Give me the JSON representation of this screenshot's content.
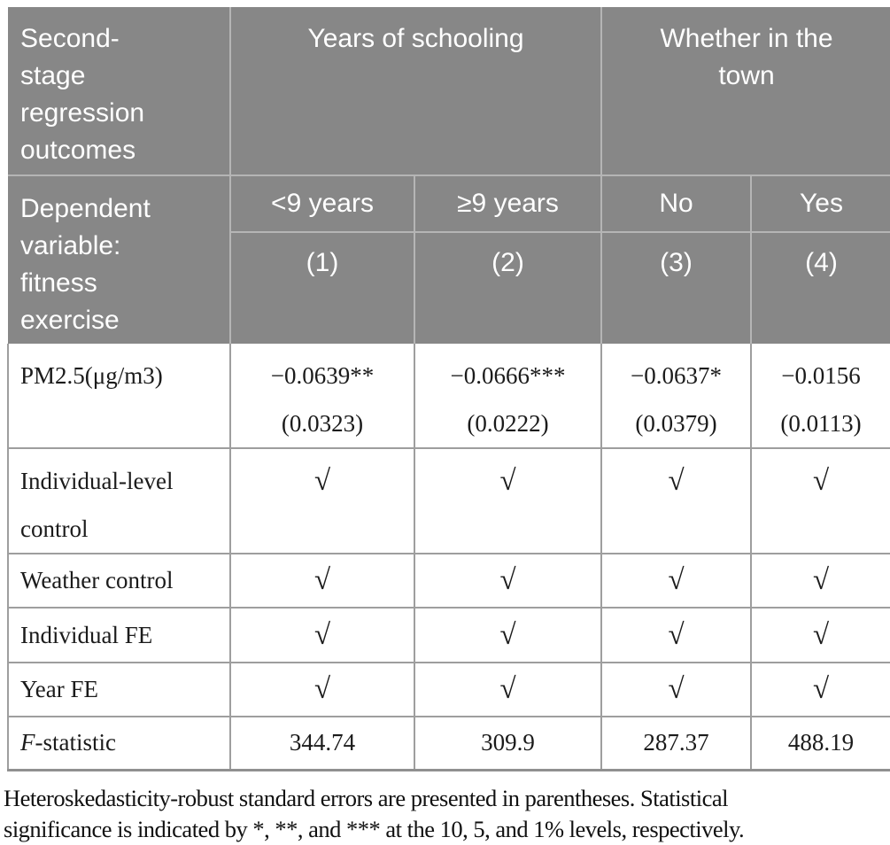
{
  "colors": {
    "header_background": "#878787",
    "header_text": "#ffffff",
    "header_divider": "#b5b5b5",
    "body_grid": "#9e9e9e",
    "body_text": "#1b1b1b"
  },
  "table": {
    "header": {
      "title_lines": [
        "Second-",
        "stage",
        "regression",
        "outcomes"
      ],
      "group1": "Years of schooling",
      "group2_lines": [
        "Whether in the",
        "town"
      ],
      "dependent_lines": [
        "Dependent",
        "variable:",
        "fitness",
        "exercise"
      ],
      "cols": [
        "<9 years",
        "≥9 years",
        "No",
        "Yes"
      ],
      "col_numbers": [
        "(1)",
        "(2)",
        "(3)",
        "(4)"
      ]
    },
    "rows": [
      {
        "label": "PM2.5(μg/m3)",
        "coef": [
          "−0.0639**",
          "−0.0666***",
          "−0.0637*",
          "−0.0156"
        ],
        "se": [
          "(0.0323)",
          "(0.0222)",
          "(0.0379)",
          "(0.0113)"
        ]
      },
      {
        "label": "Individual-level control",
        "values": [
          "√",
          "√",
          "√",
          "√"
        ]
      },
      {
        "label": "Weather control",
        "values": [
          "√",
          "√",
          "√",
          "√"
        ]
      },
      {
        "label": "Individual FE",
        "values": [
          "√",
          "√",
          "√",
          "√"
        ]
      },
      {
        "label": "Year FE",
        "values": [
          "√",
          "√",
          "√",
          "√"
        ]
      },
      {
        "label_prefix": "F",
        "label_rest": "-statistic",
        "values": [
          "344.74",
          "309.9",
          "287.37",
          "488.19"
        ]
      }
    ]
  },
  "footnote": {
    "line1": "Heteroskedasticity-robust standard errors are presented in parentheses. Statistical",
    "line2": "significance is indicated by *, **, and *** at the 10, 5, and 1% levels, respectively."
  }
}
